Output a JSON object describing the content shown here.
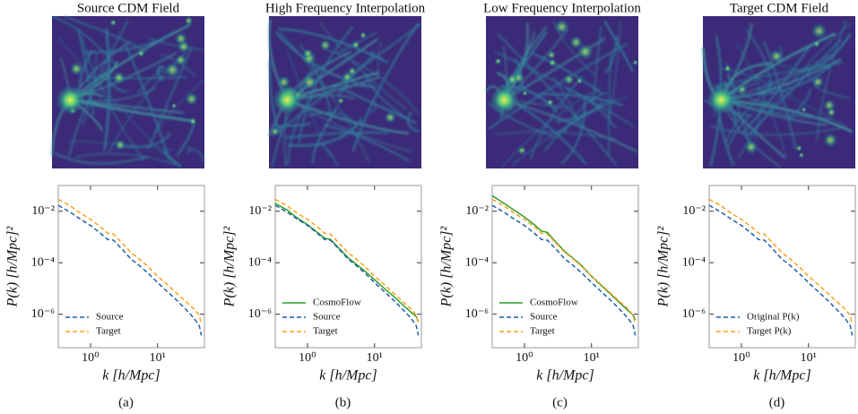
{
  "chart_data": [
    {
      "type": "line",
      "title": "Source CDM Field",
      "caption": "(a)",
      "xlabel": "k [h/Mpc]",
      "ylabel": "P(k) [h/Mpc]²",
      "log_x": true,
      "log_y": true,
      "legend": "lower left",
      "xlim": [
        0.33,
        50
      ],
      "ylim": [
        5e-08,
        0.1
      ],
      "xticks": [
        {
          "value": 1,
          "label": "10⁰"
        },
        {
          "value": 10,
          "label": "10¹"
        }
      ],
      "yticks": [
        {
          "value": 0.01,
          "label": "10⁻²"
        },
        {
          "value": 0.0001,
          "label": "10⁻⁴"
        },
        {
          "value": 1e-06,
          "label": "10⁻⁶"
        }
      ],
      "x": [
        0.33,
        0.5,
        0.7,
        1,
        1.4,
        1.8,
        2.2,
        3,
        4,
        5,
        7,
        10,
        14,
        20,
        28,
        35,
        42,
        45
      ],
      "series": [
        {
          "name": "Source",
          "color": "#1f5fa8",
          "dash": true,
          "values": [
            0.017,
            0.009,
            0.005,
            0.0028,
            0.0014,
            0.0008,
            0.00075,
            0.00032,
            0.00014,
            9e-05,
            4.2e-05,
            1.7e-05,
            7.5e-06,
            3.2e-06,
            1.3e-06,
            7e-07,
            3.5e-07,
            1.5e-07
          ]
        },
        {
          "name": "Target",
          "color": "#ff9f1c",
          "dash": true,
          "values": [
            0.029,
            0.016,
            0.0085,
            0.0048,
            0.0025,
            0.0014,
            0.0013,
            0.00055,
            0.00025,
            0.00016,
            7.5e-05,
            3e-05,
            1.4e-05,
            6e-06,
            2.7e-06,
            1.6e-06,
            9e-07,
            4e-07
          ]
        }
      ]
    },
    {
      "type": "line",
      "title": "High Frequency Interpolation",
      "caption": "(b)",
      "xlabel": "k [h/Mpc]",
      "ylabel": "P(k) [h/Mpc]²",
      "log_x": true,
      "log_y": true,
      "legend": "lower left",
      "xlim": [
        0.33,
        50
      ],
      "ylim": [
        5e-08,
        0.1
      ],
      "xticks": [
        {
          "value": 1,
          "label": "10⁰"
        },
        {
          "value": 10,
          "label": "10¹"
        }
      ],
      "yticks": [
        {
          "value": 0.01,
          "label": "10⁻²"
        },
        {
          "value": 0.0001,
          "label": "10⁻⁴"
        },
        {
          "value": 1e-06,
          "label": "10⁻⁶"
        }
      ],
      "x": [
        0.33,
        0.5,
        0.7,
        1,
        1.4,
        1.8,
        2.2,
        3,
        4,
        5,
        7,
        10,
        14,
        20,
        28,
        35,
        42,
        45
      ],
      "series": [
        {
          "name": "CosmoFlow",
          "color": "#2ca02c",
          "dash": false,
          "values": [
            0.02,
            0.011,
            0.0055,
            0.003,
            0.0015,
            0.0009,
            0.0008,
            0.00035,
            0.00016,
            0.0001,
            5e-05,
            2.2e-05,
            1e-05,
            4.5e-06,
            2e-06,
            1.2e-06,
            8e-07,
            5e-07
          ]
        },
        {
          "name": "Source",
          "color": "#1f5fa8",
          "dash": true,
          "values": [
            0.017,
            0.009,
            0.005,
            0.0028,
            0.0014,
            0.0008,
            0.00075,
            0.00032,
            0.00014,
            9e-05,
            4.2e-05,
            1.7e-05,
            7.5e-06,
            3.2e-06,
            1.3e-06,
            7e-07,
            3.5e-07,
            1.5e-07
          ]
        },
        {
          "name": "Target",
          "color": "#ff9f1c",
          "dash": true,
          "values": [
            0.029,
            0.016,
            0.0085,
            0.0048,
            0.0025,
            0.0014,
            0.0013,
            0.00055,
            0.00025,
            0.00016,
            7.5e-05,
            3e-05,
            1.4e-05,
            6e-06,
            2.7e-06,
            1.6e-06,
            9e-07,
            4e-07
          ]
        }
      ]
    },
    {
      "type": "line",
      "title": "Low Frequency Interpolation",
      "caption": "(c)",
      "xlabel": "k [h/Mpc]",
      "ylabel": "P(k) [h/Mpc]²",
      "log_x": true,
      "log_y": true,
      "legend": "lower left",
      "xlim": [
        0.33,
        50
      ],
      "ylim": [
        5e-08,
        0.1
      ],
      "xticks": [
        {
          "value": 1,
          "label": "10⁰"
        },
        {
          "value": 10,
          "label": "10¹"
        }
      ],
      "yticks": [
        {
          "value": 0.01,
          "label": "10⁻²"
        },
        {
          "value": 0.0001,
          "label": "10⁻⁴"
        },
        {
          "value": 1e-06,
          "label": "10⁻⁶"
        }
      ],
      "x": [
        0.33,
        0.5,
        0.7,
        1,
        1.4,
        1.8,
        2.2,
        3,
        4,
        5,
        7,
        10,
        14,
        20,
        28,
        35,
        42,
        45
      ],
      "series": [
        {
          "name": "CosmoFlow",
          "color": "#2ca02c",
          "dash": false,
          "values": [
            0.04,
            0.02,
            0.011,
            0.006,
            0.003,
            0.0017,
            0.0015,
            0.0006,
            0.00027,
            0.00017,
            8e-05,
            3e-05,
            1.3e-05,
            5.5e-06,
            2.4e-06,
            1.4e-06,
            9e-07,
            6e-07
          ]
        },
        {
          "name": "Source",
          "color": "#1f5fa8",
          "dash": true,
          "values": [
            0.017,
            0.009,
            0.005,
            0.0028,
            0.0014,
            0.0008,
            0.00075,
            0.00032,
            0.00014,
            9e-05,
            4.2e-05,
            1.7e-05,
            7.5e-06,
            3.2e-06,
            1.3e-06,
            7e-07,
            3.5e-07,
            1.5e-07
          ]
        },
        {
          "name": "Target",
          "color": "#ff9f1c",
          "dash": true,
          "values": [
            0.029,
            0.016,
            0.0085,
            0.0048,
            0.0025,
            0.0014,
            0.0013,
            0.00055,
            0.00025,
            0.00016,
            7.5e-05,
            3e-05,
            1.4e-05,
            6e-06,
            2.7e-06,
            1.6e-06,
            9e-07,
            4e-07
          ]
        }
      ]
    },
    {
      "type": "line",
      "title": "Target CDM Field",
      "caption": "(d)",
      "xlabel": "k [h/Mpc]",
      "ylabel": "P(k) [h/Mpc]²",
      "log_x": true,
      "log_y": true,
      "legend": "lower left",
      "xlim": [
        0.33,
        50
      ],
      "ylim": [
        5e-08,
        0.1
      ],
      "xticks": [
        {
          "value": 1,
          "label": "10⁰"
        },
        {
          "value": 10,
          "label": "10¹"
        }
      ],
      "yticks": [
        {
          "value": 0.01,
          "label": "10⁻²"
        },
        {
          "value": 0.0001,
          "label": "10⁻⁴"
        },
        {
          "value": 1e-06,
          "label": "10⁻⁶"
        }
      ],
      "x": [
        0.33,
        0.5,
        0.7,
        1,
        1.4,
        1.8,
        2.2,
        3,
        4,
        5,
        7,
        10,
        14,
        20,
        28,
        35,
        42,
        45
      ],
      "series": [
        {
          "name": "Original P(k)",
          "color": "#1f5fa8",
          "dash": true,
          "values": [
            0.017,
            0.009,
            0.005,
            0.0028,
            0.0014,
            0.0008,
            0.00075,
            0.00032,
            0.00014,
            9e-05,
            4.2e-05,
            1.7e-05,
            7.5e-06,
            3.2e-06,
            1.3e-06,
            7e-07,
            3.5e-07,
            1.5e-07
          ]
        },
        {
          "name": "Target P(k)",
          "color": "#ff9f1c",
          "dash": true,
          "values": [
            0.029,
            0.016,
            0.0085,
            0.0048,
            0.0025,
            0.0014,
            0.0013,
            0.00055,
            0.00025,
            0.00016,
            7.5e-05,
            3e-05,
            1.4e-05,
            6e-06,
            2.7e-06,
            1.6e-06,
            9e-07,
            4e-07
          ]
        }
      ]
    }
  ]
}
